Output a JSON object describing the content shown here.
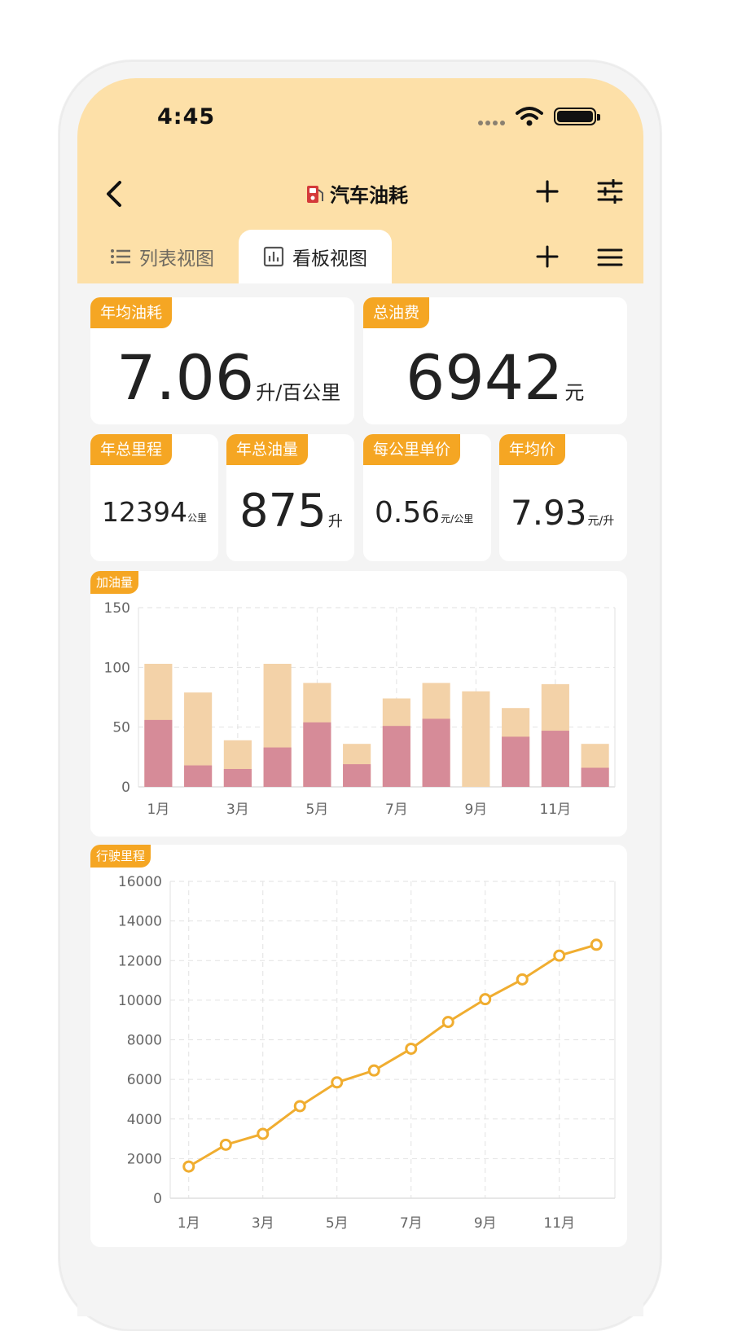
{
  "status_bar": {
    "time": "4:45"
  },
  "header": {
    "title": "汽车油耗"
  },
  "tabs": [
    {
      "label": "列表视图",
      "active": false
    },
    {
      "label": "看板视图",
      "active": true
    }
  ],
  "stats": {
    "avg_consumption": {
      "label": "年均油耗",
      "value": "7.06",
      "unit": "升/百公里"
    },
    "total_cost": {
      "label": "总油费",
      "value": "6942",
      "unit": "元"
    },
    "total_mileage": {
      "label": "年总里程",
      "value": "12394",
      "unit": "公里"
    },
    "total_fuel": {
      "label": "年总油量",
      "value": "875",
      "unit": "升"
    },
    "cost_per_km": {
      "label": "每公里单价",
      "value": "0.56",
      "unit": "元/公里"
    },
    "avg_price": {
      "label": "年均价",
      "value": "7.93",
      "unit": "元/升"
    }
  },
  "colors": {
    "accent": "#f5a623",
    "header_bg": "#fde0a8",
    "bar_back": "#f3d2a8",
    "bar_front": "#d68b98",
    "line": "#f0ad30"
  },
  "chart_data": [
    {
      "type": "bar",
      "title": "加油量",
      "categories": [
        "1月",
        "2月",
        "3月",
        "4月",
        "5月",
        "6月",
        "7月",
        "8月",
        "9月",
        "10月",
        "11月",
        "12月"
      ],
      "tick_labels": [
        "1月",
        "3月",
        "5月",
        "7月",
        "9月",
        "11月"
      ],
      "series": [
        {
          "values": [
            103,
            79,
            39,
            103,
            87,
            36,
            74,
            87,
            80,
            66,
            86,
            36
          ]
        },
        {
          "values": [
            56,
            18,
            15,
            33,
            54,
            19,
            51,
            57,
            0,
            42,
            47,
            16
          ]
        }
      ],
      "ylim": [
        0,
        150
      ],
      "yticks": [
        0,
        50,
        100,
        150
      ],
      "grid": true
    },
    {
      "type": "line",
      "title": "行驶里程",
      "categories": [
        "1月",
        "2月",
        "3月",
        "4月",
        "5月",
        "6月",
        "7月",
        "8月",
        "9月",
        "10月",
        "11月",
        "12月"
      ],
      "tick_labels": [
        "1月",
        "3月",
        "5月",
        "7月",
        "9月",
        "11月"
      ],
      "values": [
        1600,
        2700,
        3250,
        4650,
        5850,
        6450,
        7550,
        8900,
        10050,
        11050,
        12250,
        12800
      ],
      "ylim": [
        0,
        16000
      ],
      "yticks": [
        0,
        2000,
        4000,
        6000,
        8000,
        10000,
        12000,
        14000,
        16000
      ],
      "grid": true
    }
  ]
}
